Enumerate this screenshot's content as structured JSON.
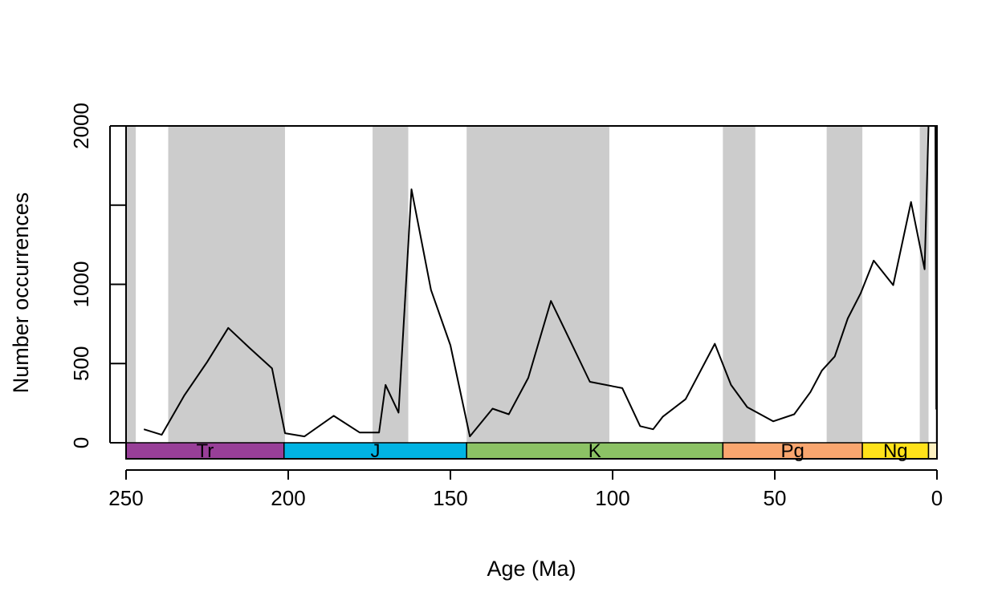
{
  "chart_data": {
    "type": "line",
    "title": "",
    "xlabel": "Age (Ma)",
    "ylabel": "Number occurrences",
    "xlim": [
      250,
      0
    ],
    "ylim": [
      0,
      2000
    ],
    "x_reversed": true,
    "grid": false,
    "line_color": "#000000",
    "band_color": "#cccccc",
    "x_ticks": [
      {
        "value": 250,
        "label": "250"
      },
      {
        "value": 200,
        "label": "200"
      },
      {
        "value": 150,
        "label": "150"
      },
      {
        "value": 100,
        "label": "100"
      },
      {
        "value": 50,
        "label": "50"
      },
      {
        "value": 0,
        "label": "0"
      }
    ],
    "y_ticks": [
      {
        "value": 0,
        "label": "0",
        "labeled": true
      },
      {
        "value": 500,
        "label": "500",
        "labeled": true
      },
      {
        "value": 1000,
        "label": "1000",
        "labeled": true
      },
      {
        "value": 1500,
        "label": "",
        "labeled": false
      },
      {
        "value": 2000,
        "label": "2000",
        "labeled": true
      }
    ],
    "shaded_intervals": [
      [
        252,
        247
      ],
      [
        237,
        201
      ],
      [
        174,
        163
      ],
      [
        145,
        101
      ],
      [
        66,
        56
      ],
      [
        34,
        23
      ],
      [
        5.3,
        2.6
      ],
      [
        0.5,
        0
      ]
    ],
    "periods": [
      {
        "name": "Tr",
        "start": 250,
        "end": 201.3,
        "color": "#983f98"
      },
      {
        "name": "J",
        "start": 201.3,
        "end": 145,
        "color": "#00b3e3"
      },
      {
        "name": "K",
        "start": 145,
        "end": 66,
        "color": "#8cc265"
      },
      {
        "name": "Pg",
        "start": 66,
        "end": 23,
        "color": "#f9a66f"
      },
      {
        "name": "Ng",
        "start": 23,
        "end": 2.6,
        "color": "#ffe21a"
      },
      {
        "name": "",
        "start": 2.6,
        "end": 0,
        "color": "#fef1c0"
      }
    ],
    "series": [
      {
        "x": [
          244.5,
          239,
          232,
          225,
          218.5,
          212,
          205,
          201,
          195,
          186,
          178,
          172,
          170,
          166,
          162,
          156,
          150,
          144,
          137,
          132,
          126,
          119,
          113,
          107,
          97,
          91.5,
          87.5,
          84.5,
          77.5,
          68.5,
          63.5,
          58.5,
          50.5,
          44,
          39,
          35.5,
          31.5,
          27.5,
          23.5,
          19.5,
          13.5,
          8,
          3.8,
          2.6,
          0.5,
          0.2
        ],
        "y": [
          85,
          50,
          300,
          510,
          725,
          600,
          470,
          60,
          40,
          170,
          65,
          65,
          365,
          190,
          1600,
          965,
          615,
          40,
          215,
          180,
          410,
          895,
          640,
          385,
          345,
          105,
          85,
          165,
          275,
          625,
          365,
          225,
          135,
          180,
          320,
          455,
          545,
          785,
          945,
          1150,
          995,
          1520,
          1095,
          2000,
          2000,
          210
        ]
      }
    ]
  }
}
